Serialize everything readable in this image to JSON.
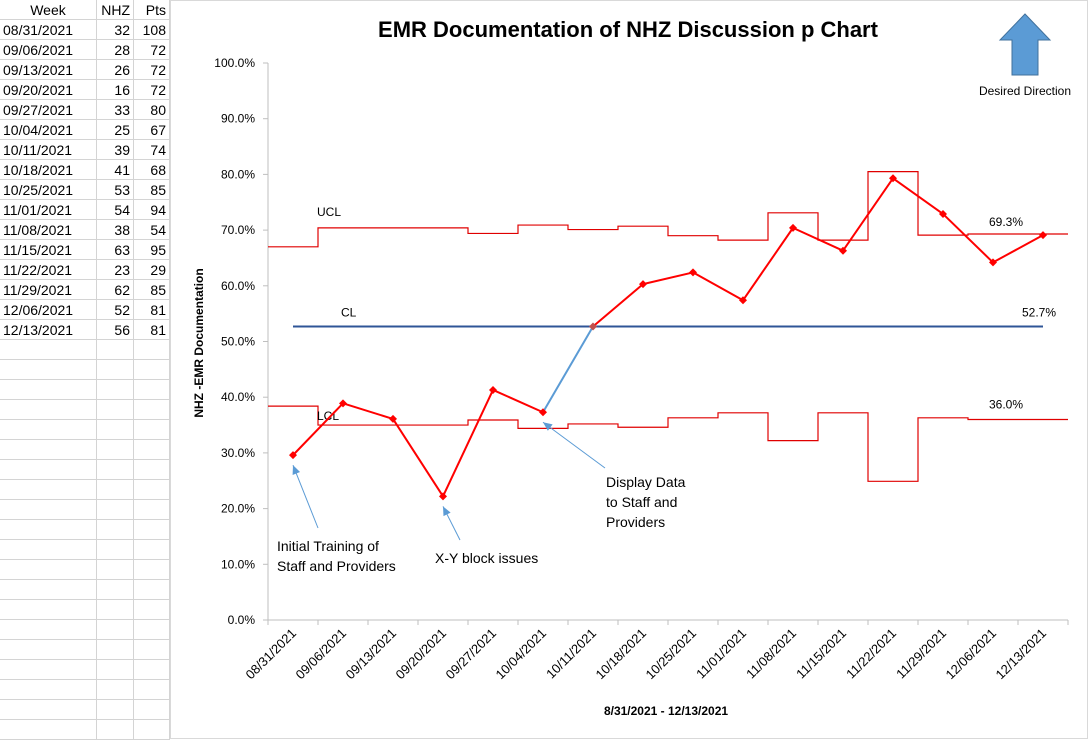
{
  "sheet": {
    "headers": [
      "Week",
      "NHZ",
      "Pts"
    ],
    "rows": [
      [
        "08/31/2021",
        "32",
        "108"
      ],
      [
        "09/06/2021",
        "28",
        "72"
      ],
      [
        "09/13/2021",
        "26",
        "72"
      ],
      [
        "09/20/2021",
        "16",
        "72"
      ],
      [
        "09/27/2021",
        "33",
        "80"
      ],
      [
        "10/04/2021",
        "25",
        "67"
      ],
      [
        "10/11/2021",
        "39",
        "74"
      ],
      [
        "10/18/2021",
        "41",
        "68"
      ],
      [
        "10/25/2021",
        "53",
        "85"
      ],
      [
        "11/01/2021",
        "54",
        "94"
      ],
      [
        "11/08/2021",
        "38",
        "54"
      ],
      [
        "11/15/2021",
        "63",
        "95"
      ],
      [
        "11/22/2021",
        "23",
        "29"
      ],
      [
        "11/29/2021",
        "62",
        "85"
      ],
      [
        "12/06/2021",
        "52",
        "81"
      ],
      [
        "12/13/2021",
        "56",
        "81"
      ]
    ]
  },
  "chart_data": {
    "type": "line",
    "title": "EMR Documentation of NHZ Discussion p Chart",
    "xlabel": "8/31/2021 - 12/13/2021",
    "ylabel": "NHZ -EMR Documentation",
    "ylim": [
      0,
      100
    ],
    "yticks": [
      "0.0%",
      "10.0%",
      "20.0%",
      "30.0%",
      "40.0%",
      "50.0%",
      "60.0%",
      "70.0%",
      "80.0%",
      "90.0%",
      "100.0%"
    ],
    "categories": [
      "08/31/2021",
      "09/06/2021",
      "09/13/2021",
      "09/20/2021",
      "09/27/2021",
      "10/04/2021",
      "10/11/2021",
      "10/18/2021",
      "10/25/2021",
      "11/01/2021",
      "11/08/2021",
      "11/15/2021",
      "11/22/2021",
      "11/29/2021",
      "12/06/2021",
      "12/13/2021"
    ],
    "p": [
      29.6,
      38.9,
      36.1,
      22.2,
      41.3,
      37.3,
      52.7,
      60.3,
      62.4,
      57.4,
      70.4,
      66.3,
      79.3,
      72.9,
      64.2,
      69.1
    ],
    "ucl": [
      67.0,
      70.4,
      70.4,
      70.4,
      69.4,
      70.9,
      70.1,
      70.7,
      69.0,
      68.2,
      73.1,
      68.2,
      80.5,
      69.1,
      69.3,
      69.3
    ],
    "lcl": [
      38.4,
      35.0,
      35.0,
      35.0,
      35.9,
      34.4,
      35.2,
      34.6,
      36.3,
      37.2,
      32.2,
      37.2,
      24.9,
      36.3,
      36.0,
      36.0
    ],
    "cl": 52.7,
    "series_labels": {
      "ucl": "UCL",
      "cl": "CL",
      "lcl": "LCL"
    },
    "value_labels": {
      "ucl_last": "69.3%",
      "cl": "52.7%",
      "lcl_last": "36.0%"
    },
    "annotations": [
      {
        "lines": [
          "Initial Training of",
          "Staff and Providers"
        ],
        "index": 0
      },
      {
        "lines": [
          "X-Y block issues"
        ],
        "index": 3
      },
      {
        "lines": [
          "Display Data",
          "to Staff and",
          "Providers"
        ],
        "index": 5
      }
    ],
    "direction_label": "Desired Direction",
    "colors": {
      "p": "#ff0000",
      "limits": "#e00000",
      "cl": "#2f5597",
      "annotation": "#5b9bd5",
      "arrow_fill": "#5b9bd5",
      "arrow_stroke": "#41719c"
    },
    "grid": false
  }
}
